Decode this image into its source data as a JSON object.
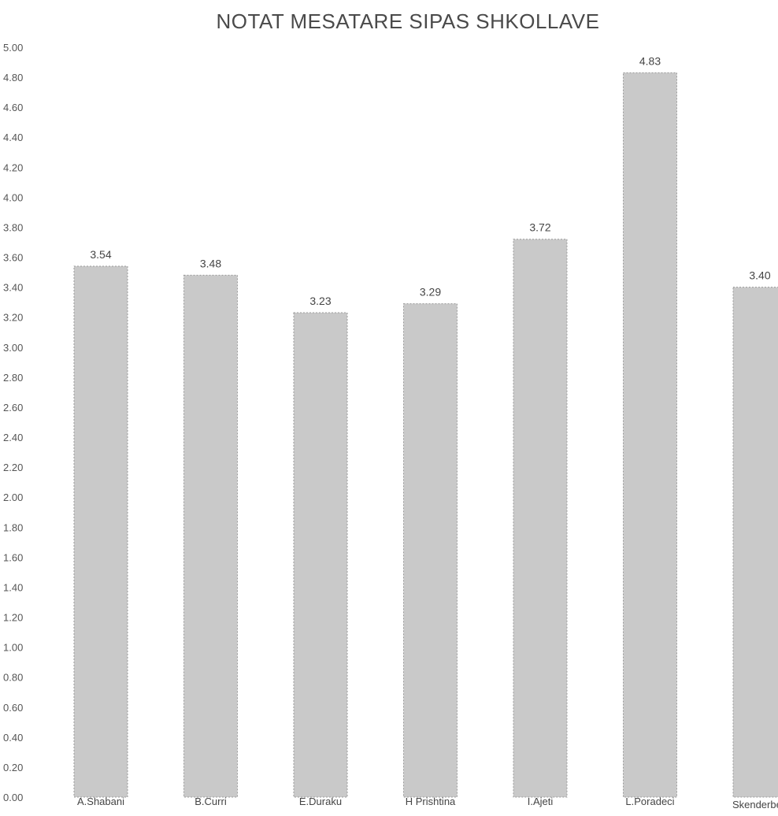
{
  "chart_data": {
    "type": "bar",
    "title": "NOTAT MESATARE SIPAS SHKOLLAVE",
    "xlabel": "",
    "ylabel": "",
    "categories": [
      "A.Shabani",
      "B.Curri",
      "E.Duraku",
      "H Prishtina",
      "I.Ajeti",
      "L.Poradeci",
      "Skenderbeu"
    ],
    "values": [
      3.54,
      3.48,
      3.23,
      3.29,
      3.72,
      4.83,
      3.4
    ],
    "data_labels": [
      "3.54",
      "3.48",
      "3.23",
      "3.29",
      "3.72",
      "4.83",
      "3.40"
    ],
    "ylim": [
      0,
      5
    ],
    "yticks": [
      0,
      0.2,
      0.4,
      0.6,
      0.8,
      1.0,
      1.2,
      1.4,
      1.6,
      1.8,
      2.0,
      2.2,
      2.4,
      2.6,
      2.8,
      3.0,
      3.2,
      3.4,
      3.6,
      3.8,
      4.0,
      4.2,
      4.4,
      4.6,
      4.8,
      5.0
    ],
    "ytick_labels": [
      "0.00",
      "0.20",
      "0.40",
      "0.60",
      "0.80",
      "1.00",
      "1.20",
      "1.40",
      "1.60",
      "1.80",
      "2.00",
      "2.20",
      "2.40",
      "2.60",
      "2.80",
      "3.00",
      "3.20",
      "3.40",
      "3.60",
      "3.80",
      "4.00",
      "4.20",
      "4.40",
      "4.60",
      "4.80",
      "5.00"
    ],
    "grid": false,
    "legend": "none",
    "bar_color": "#c9c9c9",
    "bar_edge_color": "#9a9a9a"
  }
}
